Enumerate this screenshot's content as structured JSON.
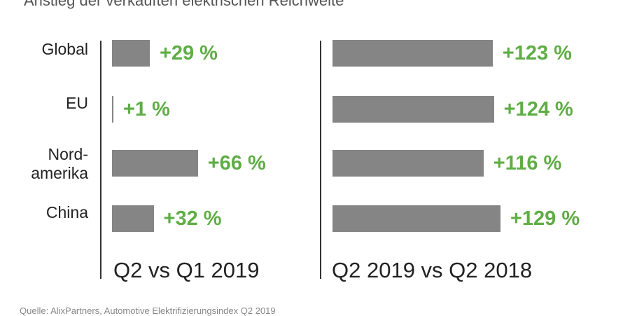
{
  "title": "Anstieg der verkauften elektrischen Reichweite",
  "source_text": "Quelle: AlixPartners, Automotive Elektrifizierungsindex Q2 2019",
  "chart_data": [
    {
      "type": "bar",
      "orientation": "horizontal",
      "panel_label": "Q2 vs Q1 2019",
      "categories": [
        "Global",
        "EU",
        "Nord-\namerika",
        "China"
      ],
      "values": [
        29,
        1,
        66,
        32
      ],
      "value_labels": [
        "+29 %",
        "+1 %",
        "+66 %",
        "+32 %"
      ],
      "unit": "%",
      "xlim": [
        0,
        100
      ]
    },
    {
      "type": "bar",
      "orientation": "horizontal",
      "panel_label": "Q2 2019 vs Q2 2018",
      "categories": [
        "Global",
        "EU",
        "Nord-\namerika",
        "China"
      ],
      "values": [
        123,
        124,
        116,
        129
      ],
      "value_labels": [
        "+123 %",
        "+124 %",
        "+116 %",
        "+129 %"
      ],
      "unit": "%",
      "xlim": [
        0,
        180
      ]
    }
  ],
  "colors": {
    "bar": "#858585",
    "value_label": "#5fad45",
    "axis": "#333333"
  }
}
